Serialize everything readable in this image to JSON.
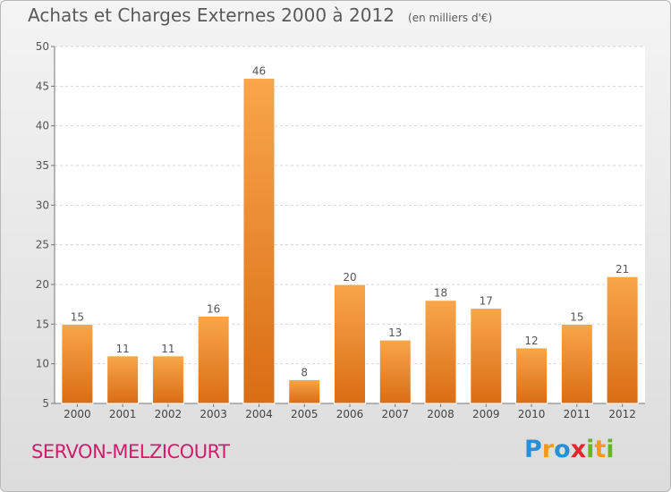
{
  "chart_data": {
    "type": "bar",
    "title": "Achats et Charges Externes 2000 à 2012",
    "unit_label": "(en milliers d'€)",
    "categories": [
      "2000",
      "2001",
      "2002",
      "2003",
      "2004",
      "2005",
      "2006",
      "2007",
      "2008",
      "2009",
      "2010",
      "2011",
      "2012"
    ],
    "values": [
      15,
      11,
      11,
      16,
      46,
      8,
      20,
      13,
      18,
      17,
      12,
      15,
      21
    ],
    "ylim": [
      5,
      50
    ],
    "yticks": [
      5,
      10,
      15,
      20,
      25,
      30,
      35,
      40,
      45,
      50
    ],
    "grid": true,
    "bar_color": "#f08c2c"
  },
  "place_name": "SERVON-MELZICOURT",
  "logo": {
    "letters": [
      "P",
      "r",
      "o",
      "x",
      "i",
      "t",
      "i"
    ],
    "colors": [
      "#2b8fd6",
      "#f39a1e",
      "#2b8fd6",
      "#e3262e",
      "#6ab42d",
      "#f39a1e",
      "#6ab42d"
    ]
  }
}
